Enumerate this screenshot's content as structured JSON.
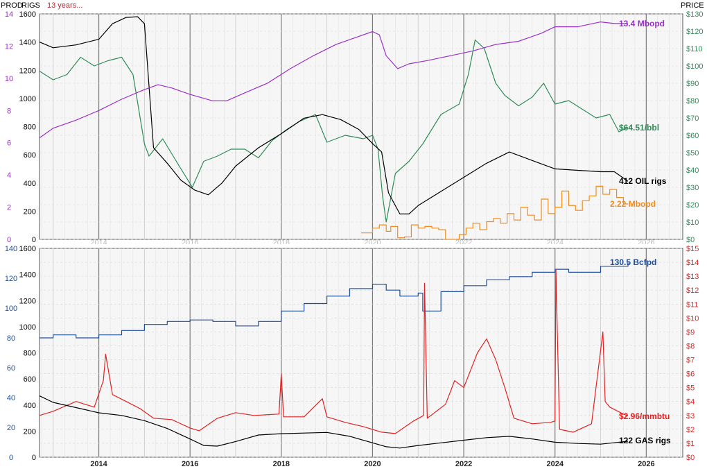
{
  "header": {
    "prod_label": "PROD",
    "rigs_label": "RIGS",
    "period_note": "13 years...",
    "price_label": "PRICE"
  },
  "colors": {
    "oil_prod": "#9b30c8",
    "oil_price": "#2e8b57",
    "oil_rigs": "#000000",
    "ngl_prod": "#f08c1e",
    "gas_prod": "#1f4e9a",
    "gas_price": "#e22222",
    "gas_rigs": "#000000",
    "axis_blue": "#1f4e9a",
    "axis_red": "#e22222",
    "axis_purple": "#9b30c8",
    "axis_green": "#2e8b57",
    "panel_bg": "#f6f6f6",
    "vgrid_major": "#7a7a7a",
    "hgrid": "#d6d6d6"
  },
  "chart_data": [
    {
      "type": "line",
      "panel": "oil",
      "x_ticks": [
        "2014",
        "2016",
        "2018",
        "2020",
        "2022",
        "2024",
        "2026"
      ],
      "x_tick_values": [
        2014,
        2016,
        2018,
        2020,
        2022,
        2024,
        2026
      ],
      "xlim": [
        2012.7,
        2026.8
      ],
      "left_prod_ticks": [
        "0",
        "2",
        "4",
        "6",
        "8",
        "10",
        "12",
        "14"
      ],
      "left_prod_ylim": [
        0,
        14
      ],
      "left_rigs_ticks": [
        "0",
        "200",
        "400",
        "600",
        "800",
        "1000",
        "1200",
        "1400",
        "1600"
      ],
      "left_rigs_ylim": [
        0,
        1600
      ],
      "right_price_ticks": [
        "$0",
        "$10",
        "$20",
        "$30",
        "$40",
        "$50",
        "$60",
        "$70",
        "$80",
        "$90",
        "$100",
        "$110",
        "$120",
        "$130"
      ],
      "right_price_ylim": [
        0,
        130
      ],
      "annotations": {
        "oil_prod_label": "13.4 Mbopd",
        "oil_price_label": "$64.51/bbl",
        "oil_rigs_label": "412 OIL rigs",
        "ngl_label": "2.22 Mbopd"
      },
      "series": [
        {
          "key": "oil_price",
          "axis": "price",
          "x": [
            2012.7,
            2013.0,
            2013.3,
            2013.6,
            2013.9,
            2014.2,
            2014.5,
            2014.75,
            2015.0,
            2015.1,
            2015.4,
            2015.7,
            2016.05,
            2016.3,
            2016.6,
            2016.9,
            2017.2,
            2017.5,
            2017.8,
            2018.1,
            2018.4,
            2018.75,
            2019.0,
            2019.4,
            2019.8,
            2020.0,
            2020.12,
            2020.22,
            2020.3,
            2020.5,
            2020.8,
            2021.1,
            2021.5,
            2021.9,
            2022.1,
            2022.25,
            2022.45,
            2022.7,
            2022.9,
            2023.2,
            2023.5,
            2023.75,
            2024.0,
            2024.3,
            2024.6,
            2024.9,
            2025.2,
            2025.4,
            2025.6
          ],
          "y": [
            97,
            92,
            95,
            105,
            100,
            103,
            105,
            95,
            55,
            48,
            58,
            45,
            30,
            45,
            48,
            52,
            52,
            47,
            57,
            63,
            68,
            72,
            56,
            60,
            58,
            60,
            52,
            25,
            10,
            38,
            45,
            55,
            72,
            78,
            95,
            115,
            110,
            90,
            83,
            77,
            82,
            90,
            78,
            80,
            75,
            70,
            72,
            62,
            64.51
          ]
        },
        {
          "key": "oil_rigs",
          "axis": "rigs",
          "x": [
            2012.7,
            2013.0,
            2013.5,
            2014.0,
            2014.3,
            2014.6,
            2014.85,
            2015.0,
            2015.2,
            2015.5,
            2015.8,
            2016.1,
            2016.4,
            2016.7,
            2017.0,
            2017.5,
            2018.0,
            2018.5,
            2018.9,
            2019.3,
            2019.7,
            2020.0,
            2020.2,
            2020.35,
            2020.6,
            2020.8,
            2021.0,
            2021.5,
            2022.0,
            2022.5,
            2023.0,
            2023.5,
            2024.0,
            2024.5,
            2025.0,
            2025.3,
            2025.6
          ],
          "y": [
            1400,
            1360,
            1380,
            1420,
            1530,
            1575,
            1580,
            1530,
            650,
            540,
            420,
            350,
            316,
            400,
            520,
            650,
            750,
            860,
            885,
            850,
            780,
            680,
            620,
            330,
            180,
            180,
            240,
            340,
            440,
            540,
            620,
            560,
            500,
            490,
            480,
            480,
            412
          ]
        },
        {
          "key": "oil_prod",
          "axis": "prod",
          "x": [
            2012.7,
            2013.0,
            2013.5,
            2014.0,
            2014.5,
            2015.0,
            2015.3,
            2015.6,
            2016.0,
            2016.5,
            2016.8,
            2017.2,
            2017.7,
            2018.2,
            2018.7,
            2019.2,
            2019.6,
            2020.0,
            2020.15,
            2020.3,
            2020.55,
            2020.8,
            2021.2,
            2021.7,
            2022.2,
            2022.7,
            2023.2,
            2023.7,
            2024.0,
            2024.5,
            2025.0,
            2025.3,
            2025.6
          ],
          "y": [
            6.3,
            6.9,
            7.4,
            8.0,
            8.7,
            9.3,
            9.6,
            9.4,
            9.0,
            8.6,
            8.6,
            9.1,
            9.7,
            10.6,
            11.4,
            12.1,
            12.5,
            12.9,
            12.7,
            11.4,
            10.6,
            10.9,
            11.1,
            11.4,
            11.7,
            12.1,
            12.3,
            12.8,
            13.2,
            13.2,
            13.5,
            13.4,
            13.4
          ]
        },
        {
          "key": "ngl_prod",
          "axis": "prod",
          "step": true,
          "x": [
            2019.75,
            2019.85,
            2020.0,
            2020.15,
            2020.3,
            2020.4,
            2020.55,
            2020.7,
            2020.85,
            2021.0,
            2021.15,
            2021.3,
            2021.45,
            2021.6,
            2021.75,
            2021.9,
            2022.05,
            2022.2,
            2022.35,
            2022.5,
            2022.65,
            2022.8,
            2022.95,
            2023.1,
            2023.25,
            2023.4,
            2023.55,
            2023.7,
            2023.85,
            2024.0,
            2024.15,
            2024.3,
            2024.45,
            2024.6,
            2024.75,
            2024.9,
            2025.05,
            2025.2,
            2025.35,
            2025.5,
            2025.6
          ],
          "y": [
            0.4,
            0.4,
            0.7,
            0.9,
            0.5,
            0.8,
            0.1,
            0.15,
            0.9,
            0.7,
            0.8,
            0.7,
            0.6,
            0.0,
            0.0,
            0.3,
            0.7,
            1.0,
            0.6,
            1.1,
            1.3,
            1.0,
            1.6,
            1.2,
            2.0,
            1.5,
            1.2,
            2.5,
            1.6,
            2.0,
            3.0,
            2.1,
            1.8,
            2.4,
            2.7,
            3.3,
            2.8,
            3.1,
            2.6,
            2.2,
            2.22
          ]
        }
      ]
    },
    {
      "type": "line",
      "panel": "gas",
      "x_ticks": [
        "2014",
        "2016",
        "2018",
        "2020",
        "2022",
        "2024",
        "2026"
      ],
      "x_tick_values": [
        2014,
        2016,
        2018,
        2020,
        2022,
        2024,
        2026
      ],
      "xlim": [
        2012.7,
        2026.8
      ],
      "left_prod_ticks": [
        "0",
        "20",
        "40",
        "60",
        "80",
        "100",
        "120",
        "140"
      ],
      "left_prod_ylim": [
        0,
        140
      ],
      "left_rigs_ticks": [
        "0",
        "200",
        "400",
        "600",
        "800",
        "1000",
        "1200",
        "1400",
        "1600"
      ],
      "left_rigs_ylim": [
        0,
        1600
      ],
      "right_price_ticks": [
        "$0",
        "$1",
        "$2",
        "$3",
        "$4",
        "$5",
        "$6",
        "$7",
        "$8",
        "$9",
        "$10",
        "$11",
        "$12",
        "$13",
        "$14",
        "$15"
      ],
      "right_price_ylim": [
        0,
        15
      ],
      "annotations": {
        "gas_prod_label": "130.5 Bcfpd",
        "gas_price_label": "$2.96/mmbtu",
        "gas_rigs_label": "122 GAS rigs"
      },
      "series": [
        {
          "key": "gas_prod",
          "axis": "prod",
          "step": true,
          "x": [
            2012.7,
            2013.0,
            2013.5,
            2014.0,
            2014.5,
            2015.0,
            2015.5,
            2016.0,
            2016.5,
            2017.0,
            2017.5,
            2018.0,
            2018.5,
            2019.0,
            2019.5,
            2020.0,
            2020.3,
            2020.6,
            2021.0,
            2021.1,
            2021.5,
            2022.0,
            2022.5,
            2023.0,
            2023.5,
            2024.0,
            2024.3,
            2024.6,
            2025.0,
            2025.6
          ],
          "y": [
            80,
            82,
            80,
            82,
            85,
            89,
            91,
            92,
            91,
            88,
            91,
            98,
            103,
            108,
            113,
            116,
            112,
            108,
            110,
            98,
            111,
            115,
            119,
            121,
            124,
            126,
            124,
            124,
            128,
            130.5
          ]
        },
        {
          "key": "gas_price",
          "axis": "price",
          "x": [
            2012.7,
            2013.0,
            2013.5,
            2013.9,
            2014.1,
            2014.15,
            2014.3,
            2014.6,
            2014.9,
            2015.2,
            2015.6,
            2016.0,
            2016.2,
            2016.6,
            2017.0,
            2017.4,
            2017.95,
            2018.0,
            2018.05,
            2018.5,
            2018.9,
            2019.0,
            2019.4,
            2019.8,
            2020.2,
            2020.5,
            2020.9,
            2021.12,
            2021.14,
            2021.2,
            2021.6,
            2021.8,
            2022.0,
            2022.3,
            2022.5,
            2022.7,
            2022.9,
            2023.1,
            2023.5,
            2023.9,
            2024.0,
            2024.02,
            2024.1,
            2024.4,
            2024.8,
            2025.05,
            2025.1,
            2025.2,
            2025.5,
            2025.6
          ],
          "y": [
            3.0,
            3.3,
            4.0,
            3.6,
            5.5,
            7.4,
            4.5,
            4.0,
            3.5,
            2.8,
            2.7,
            2.1,
            1.9,
            2.8,
            3.2,
            3.0,
            3.1,
            6.0,
            2.9,
            2.9,
            4.2,
            2.9,
            2.5,
            2.2,
            1.8,
            1.7,
            2.6,
            3.0,
            12.5,
            2.8,
            3.8,
            5.5,
            5.0,
            7.5,
            8.5,
            7.0,
            5.0,
            2.8,
            2.4,
            2.5,
            2.6,
            13.5,
            2.0,
            1.8,
            2.4,
            9.0,
            4.0,
            3.6,
            3.1,
            2.96
          ]
        },
        {
          "key": "gas_rigs",
          "axis": "rigs",
          "x": [
            2012.7,
            2013.0,
            2013.5,
            2014.0,
            2014.5,
            2015.0,
            2015.5,
            2016.0,
            2016.3,
            2016.6,
            2017.0,
            2017.5,
            2018.0,
            2018.5,
            2019.0,
            2019.5,
            2020.0,
            2020.3,
            2020.6,
            2021.0,
            2021.5,
            2022.0,
            2022.5,
            2023.0,
            2023.5,
            2024.0,
            2024.5,
            2025.0,
            2025.6
          ],
          "y": [
            470,
            420,
            380,
            340,
            320,
            280,
            220,
            140,
            90,
            85,
            120,
            170,
            180,
            185,
            190,
            160,
            110,
            80,
            70,
            90,
            110,
            130,
            150,
            160,
            140,
            115,
            105,
            100,
            122
          ]
        }
      ]
    }
  ]
}
